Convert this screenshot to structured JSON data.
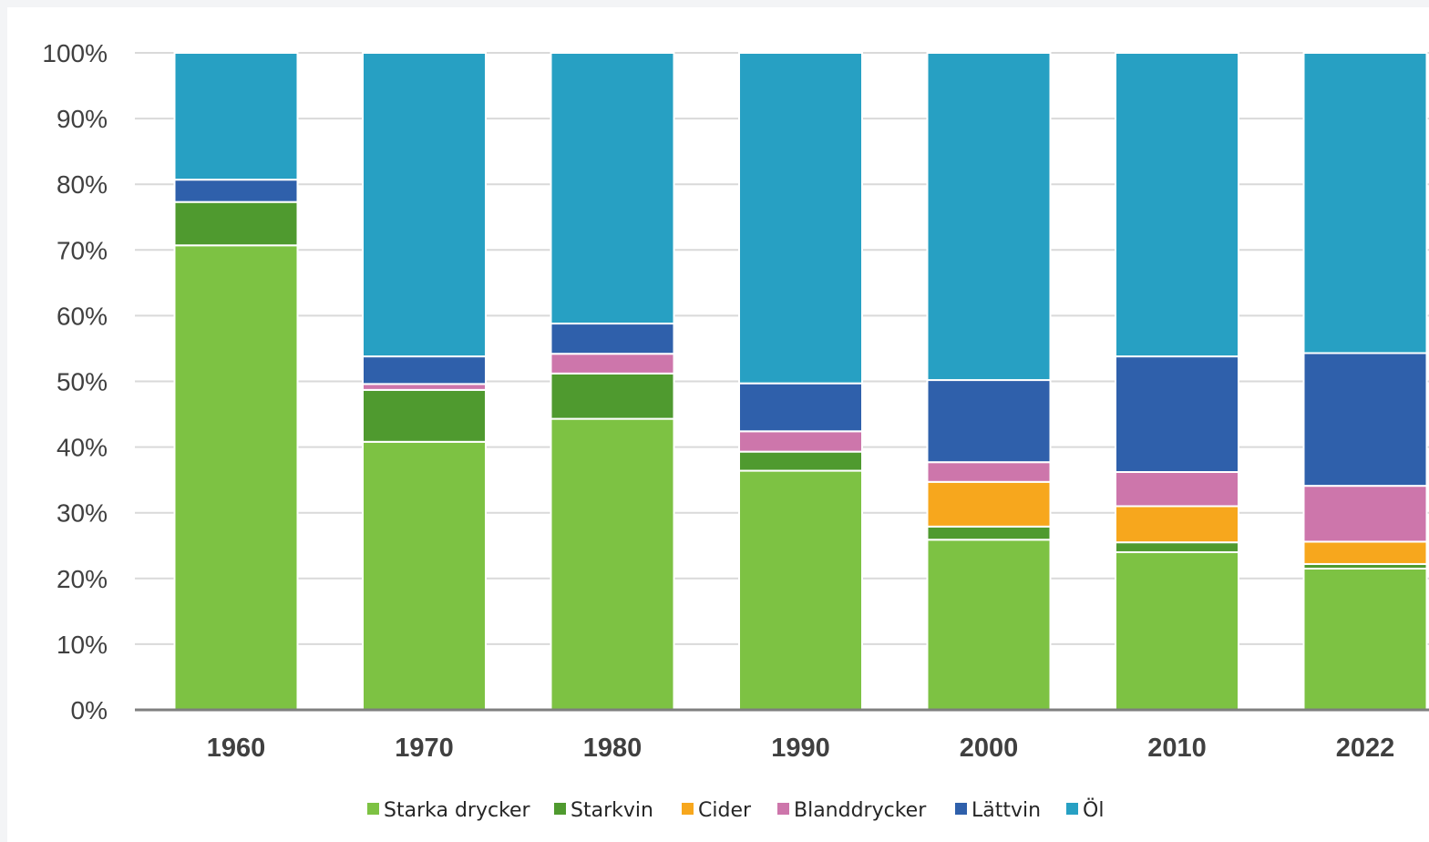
{
  "chart_data": {
    "type": "bar",
    "stacked": true,
    "percent_stacked": true,
    "categories": [
      "1960",
      "1970",
      "1980",
      "1990",
      "2000",
      "2010",
      "2022"
    ],
    "series": [
      {
        "name": "Starka drycker",
        "color": "#7dc243",
        "values": [
          70.7,
          40.8,
          44.3,
          36.4,
          25.9,
          24.0,
          21.5
        ]
      },
      {
        "name": "Starkvin",
        "color": "#4f9a2f",
        "values": [
          6.6,
          7.9,
          6.9,
          2.9,
          2.0,
          1.5,
          0.7
        ]
      },
      {
        "name": "Cider",
        "color": "#f7a71d",
        "values": [
          0.0,
          0.0,
          0.0,
          0.0,
          6.8,
          5.5,
          3.4
        ]
      },
      {
        "name": "Blanddrycker",
        "color": "#cd76ab",
        "values": [
          0.0,
          0.9,
          3.0,
          3.1,
          3.0,
          5.2,
          8.5
        ]
      },
      {
        "name": "Lättvin",
        "color": "#2f60ab",
        "values": [
          3.4,
          4.2,
          4.6,
          7.3,
          12.5,
          17.6,
          20.2
        ]
      },
      {
        "name": "Öl",
        "color": "#27a0c3",
        "values": [
          19.3,
          46.2,
          41.2,
          50.3,
          49.8,
          46.2,
          45.7
        ]
      }
    ],
    "ylim": [
      0,
      100
    ],
    "yticks": [
      "0%",
      "10%",
      "20%",
      "30%",
      "40%",
      "50%",
      "60%",
      "70%",
      "80%",
      "90%",
      "100%"
    ],
    "grid": true,
    "legend_position": "bottom",
    "title": "",
    "xlabel": "",
    "ylabel": ""
  }
}
